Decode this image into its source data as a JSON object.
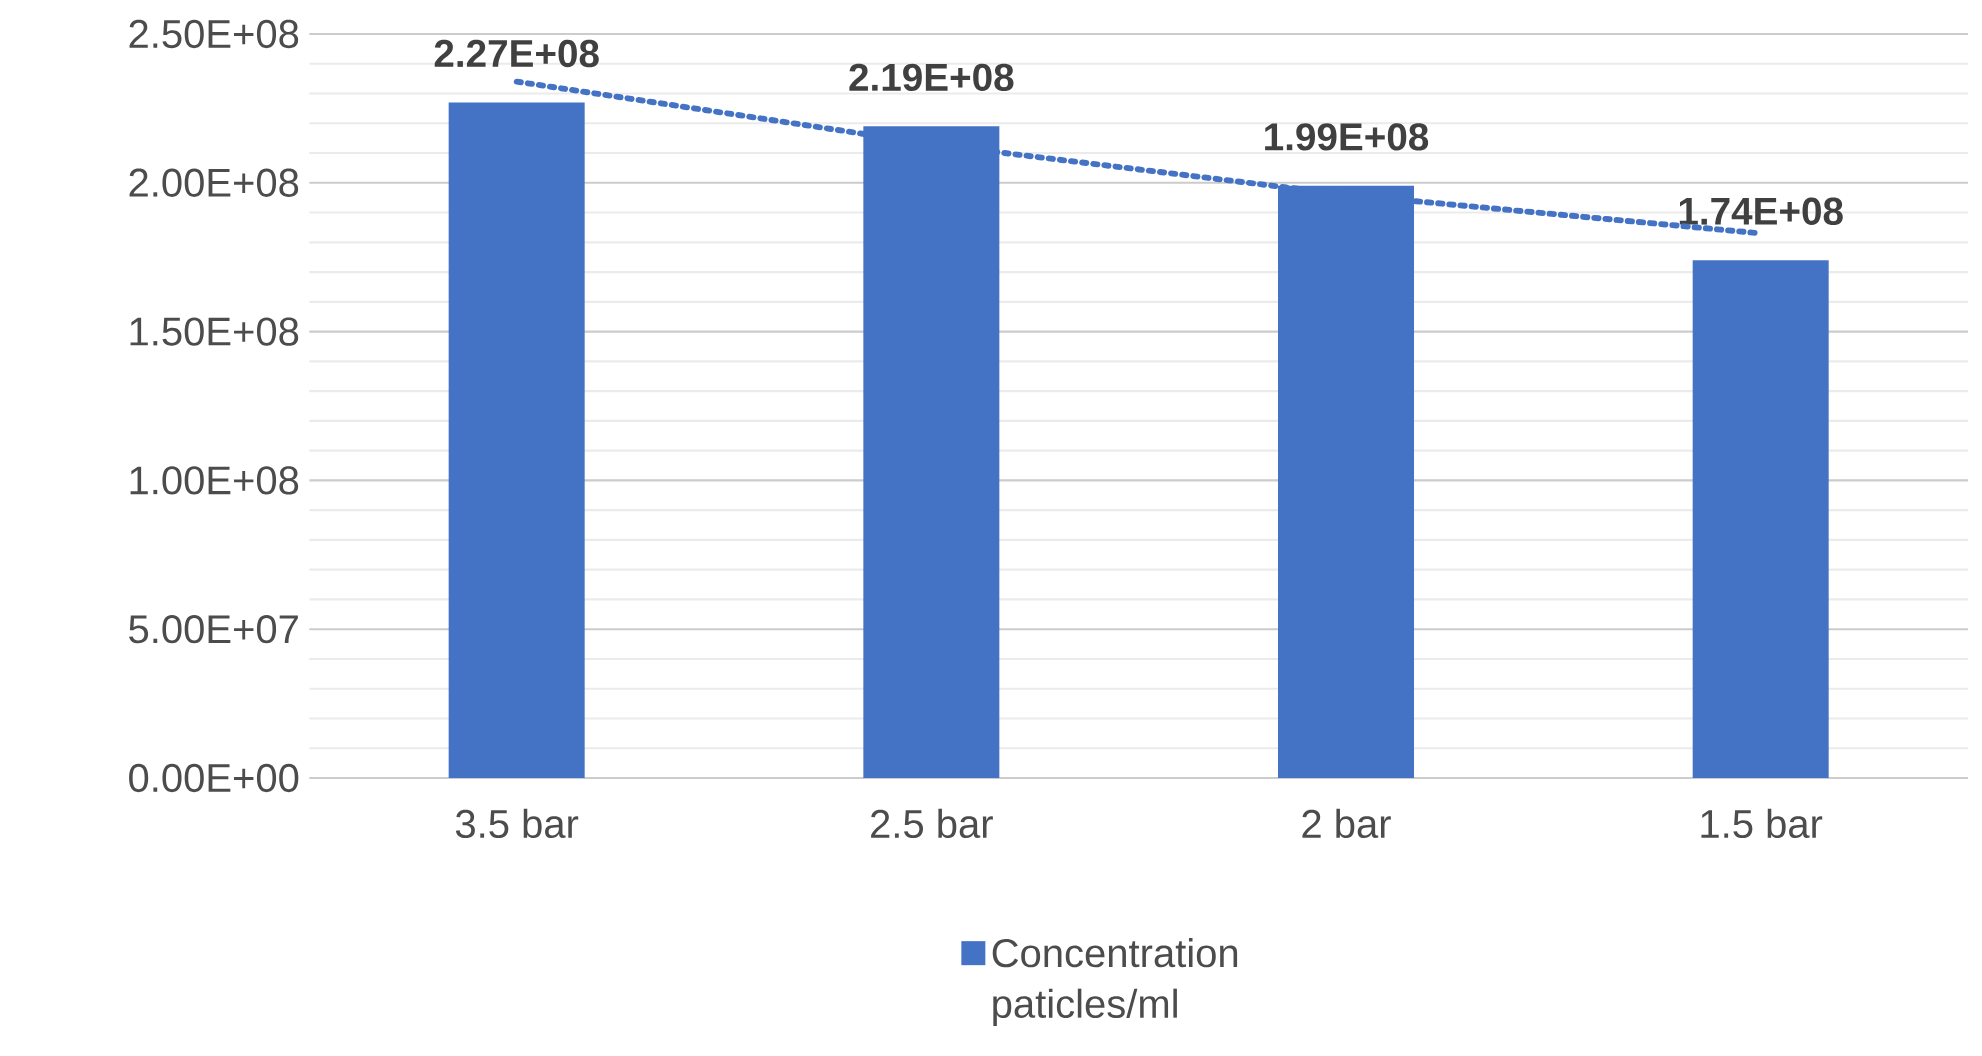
{
  "chart_data": {
    "type": "bar",
    "categories": [
      "3.5 bar",
      "2.5 bar",
      "2 bar",
      "1.5 bar"
    ],
    "series": [
      {
        "name": "Concentration paticles/ml",
        "color": "#4472c4",
        "values": [
          227000000,
          219000000,
          199000000,
          174000000
        ],
        "value_labels": [
          "2.27E+08",
          "2.19E+08",
          "1.99E+08",
          "1.74E+08"
        ]
      },
      {
        "type": "line",
        "color": "#4472c4",
        "line_style": "dotted",
        "values": [
          234000000,
          213000000,
          196000000,
          183000000
        ]
      }
    ],
    "ylim": [
      0,
      250000000
    ],
    "yticks": [
      {
        "value": 0,
        "label": "0.00E+00"
      },
      {
        "value": 50000000,
        "label": "5.00E+07"
      },
      {
        "value": 100000000,
        "label": "1.00E+08"
      },
      {
        "value": 150000000,
        "label": "1.50E+08"
      },
      {
        "value": 200000000,
        "label": "2.00E+08"
      },
      {
        "value": 250000000,
        "label": "2.50E+08"
      }
    ],
    "grid": "y",
    "legend": "bottom"
  }
}
